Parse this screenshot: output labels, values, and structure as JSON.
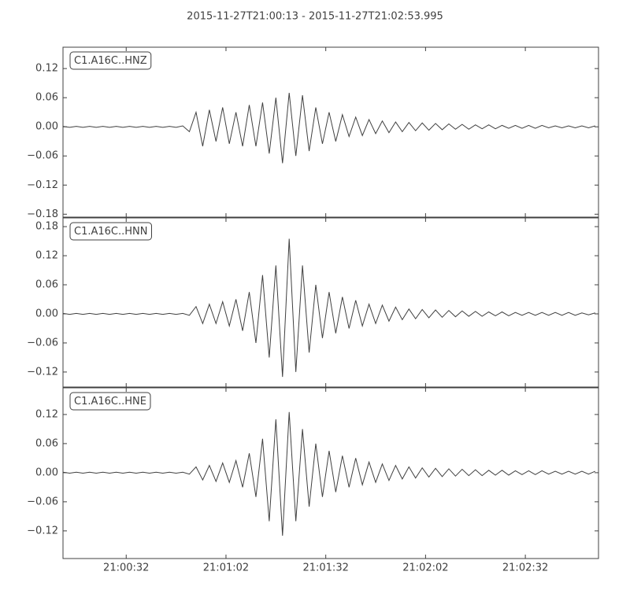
{
  "title": "2015-11-27T21:00:13  -  2015-11-27T21:02:53.995",
  "chart_data": [
    {
      "type": "line",
      "xlim": [
        13,
        173.995
      ],
      "ylim": [
        -0.186,
        0.164
      ],
      "yticks": [
        {
          "value": -0.18,
          "label": "−0.18"
        },
        {
          "value": -0.12,
          "label": "−0.12"
        },
        {
          "value": -0.06,
          "label": "−0.06"
        },
        {
          "value": 0,
          "label": "0.00"
        },
        {
          "value": 0.06,
          "label": "0.06"
        },
        {
          "value": 0.12,
          "label": "0.12"
        }
      ],
      "x": [
        13,
        15,
        17,
        19,
        21,
        23,
        25,
        27,
        29,
        31,
        33,
        35,
        37,
        39,
        41,
        43,
        45,
        47,
        49,
        51,
        53,
        55,
        57,
        59,
        61,
        63,
        65,
        67,
        69,
        71,
        73,
        75,
        77,
        79,
        81,
        83,
        85,
        87,
        89,
        91,
        93,
        95,
        97,
        99,
        101,
        103,
        105,
        107,
        109,
        111,
        113,
        115,
        117,
        119,
        121,
        123,
        125,
        127,
        129,
        131,
        133,
        135,
        137,
        139,
        141,
        143,
        145,
        147,
        149,
        151,
        153,
        155,
        157,
        159,
        161,
        163,
        165,
        167,
        169,
        171,
        173
      ],
      "series": [
        {
          "name": "C1.A16C..HNZ",
          "color": "#404040",
          "values": [
            0.001,
            -0.001,
            0.001,
            -0.001,
            0.001,
            -0.001,
            0.001,
            -0.001,
            0.001,
            -0.001,
            0.001,
            -0.001,
            0.001,
            -0.001,
            0.001,
            -0.001,
            0.001,
            -0.001,
            0.002,
            -0.01,
            0.03,
            -0.04,
            0.035,
            -0.03,
            0.04,
            -0.035,
            0.03,
            -0.04,
            0.045,
            -0.04,
            0.05,
            -0.055,
            0.06,
            -0.075,
            0.07,
            -0.06,
            0.065,
            -0.05,
            0.04,
            -0.035,
            0.03,
            -0.03,
            0.025,
            -0.02,
            0.02,
            -0.018,
            0.015,
            -0.014,
            0.012,
            -0.012,
            0.01,
            -0.01,
            0.009,
            -0.008,
            0.008,
            -0.007,
            0.007,
            -0.006,
            0.006,
            -0.005,
            0.005,
            -0.005,
            0.004,
            -0.004,
            0.004,
            -0.004,
            0.003,
            -0.003,
            0.003,
            -0.003,
            0.003,
            -0.003,
            0.003,
            -0.002,
            0.002,
            -0.002,
            0.002,
            -0.002,
            0.002,
            -0.002,
            0.002
          ]
        }
      ]
    },
    {
      "type": "line",
      "xlim": [
        13,
        173.995
      ],
      "ylim": [
        -0.151,
        0.198
      ],
      "yticks": [
        {
          "value": -0.12,
          "label": "−0.12"
        },
        {
          "value": -0.06,
          "label": "−0.06"
        },
        {
          "value": 0,
          "label": "0.00"
        },
        {
          "value": 0.06,
          "label": "0.06"
        },
        {
          "value": 0.12,
          "label": "0.12"
        },
        {
          "value": 0.18,
          "label": "0.18"
        }
      ],
      "x": [
        13,
        15,
        17,
        19,
        21,
        23,
        25,
        27,
        29,
        31,
        33,
        35,
        37,
        39,
        41,
        43,
        45,
        47,
        49,
        51,
        53,
        55,
        57,
        59,
        61,
        63,
        65,
        67,
        69,
        71,
        73,
        75,
        77,
        79,
        81,
        83,
        85,
        87,
        89,
        91,
        93,
        95,
        97,
        99,
        101,
        103,
        105,
        107,
        109,
        111,
        113,
        115,
        117,
        119,
        121,
        123,
        125,
        127,
        129,
        131,
        133,
        135,
        137,
        139,
        141,
        143,
        145,
        147,
        149,
        151,
        153,
        155,
        157,
        159,
        161,
        163,
        165,
        167,
        169,
        171,
        173
      ],
      "series": [
        {
          "name": "C1.A16C..HNN",
          "color": "#404040",
          "values": [
            0.001,
            -0.001,
            0.001,
            -0.001,
            0.001,
            -0.001,
            0.001,
            -0.001,
            0.001,
            -0.001,
            0.001,
            -0.001,
            0.001,
            -0.001,
            0.001,
            -0.001,
            0.001,
            -0.001,
            0.001,
            -0.003,
            0.015,
            -0.02,
            0.02,
            -0.02,
            0.025,
            -0.025,
            0.03,
            -0.035,
            0.045,
            -0.06,
            0.08,
            -0.09,
            0.1,
            -0.13,
            0.155,
            -0.12,
            0.1,
            -0.08,
            0.06,
            -0.05,
            0.045,
            -0.04,
            0.035,
            -0.03,
            0.028,
            -0.025,
            0.02,
            -0.02,
            0.018,
            -0.015,
            0.014,
            -0.012,
            0.01,
            -0.01,
            0.009,
            -0.008,
            0.008,
            -0.007,
            0.007,
            -0.006,
            0.006,
            -0.005,
            0.005,
            -0.005,
            0.004,
            -0.004,
            0.004,
            -0.004,
            0.003,
            -0.003,
            0.003,
            -0.003,
            0.003,
            -0.003,
            0.003,
            -0.003,
            0.003,
            -0.003,
            0.002,
            -0.002,
            0.002
          ]
        }
      ]
    },
    {
      "type": "line",
      "xlim": [
        13,
        173.995
      ],
      "ylim": [
        -0.177,
        0.175
      ],
      "xticks": [
        {
          "value": 32,
          "label": "21:00:32"
        },
        {
          "value": 62,
          "label": "21:01:02"
        },
        {
          "value": 92,
          "label": "21:01:32"
        },
        {
          "value": 122,
          "label": "21:02:02"
        },
        {
          "value": 152,
          "label": "21:02:32"
        }
      ],
      "yticks": [
        {
          "value": -0.12,
          "label": "−0.12"
        },
        {
          "value": -0.06,
          "label": "−0.06"
        },
        {
          "value": 0,
          "label": "0.00"
        },
        {
          "value": 0.06,
          "label": "0.06"
        },
        {
          "value": 0.12,
          "label": "0.12"
        }
      ],
      "x": [
        13,
        15,
        17,
        19,
        21,
        23,
        25,
        27,
        29,
        31,
        33,
        35,
        37,
        39,
        41,
        43,
        45,
        47,
        49,
        51,
        53,
        55,
        57,
        59,
        61,
        63,
        65,
        67,
        69,
        71,
        73,
        75,
        77,
        79,
        81,
        83,
        85,
        87,
        89,
        91,
        93,
        95,
        97,
        99,
        101,
        103,
        105,
        107,
        109,
        111,
        113,
        115,
        117,
        119,
        121,
        123,
        125,
        127,
        129,
        131,
        133,
        135,
        137,
        139,
        141,
        143,
        145,
        147,
        149,
        151,
        153,
        155,
        157,
        159,
        161,
        163,
        165,
        167,
        169,
        171,
        173
      ],
      "series": [
        {
          "name": "C1.A16C..HNE",
          "color": "#404040",
          "values": [
            0.001,
            -0.001,
            0.001,
            -0.001,
            0.001,
            -0.001,
            0.001,
            -0.001,
            0.001,
            -0.001,
            0.001,
            -0.001,
            0.001,
            -0.001,
            0.001,
            -0.001,
            0.001,
            -0.001,
            0.001,
            -0.003,
            0.012,
            -0.015,
            0.015,
            -0.018,
            0.02,
            -0.02,
            0.025,
            -0.03,
            0.04,
            -0.05,
            0.07,
            -0.1,
            0.11,
            -0.13,
            0.125,
            -0.1,
            0.09,
            -0.07,
            0.06,
            -0.05,
            0.045,
            -0.04,
            0.035,
            -0.03,
            0.03,
            -0.025,
            0.022,
            -0.02,
            0.018,
            -0.016,
            0.015,
            -0.013,
            0.012,
            -0.011,
            0.01,
            -0.009,
            0.009,
            -0.008,
            0.008,
            -0.007,
            0.007,
            -0.006,
            0.006,
            -0.006,
            0.005,
            -0.005,
            0.005,
            -0.005,
            0.004,
            -0.004,
            0.004,
            -0.004,
            0.004,
            -0.003,
            0.003,
            -0.003,
            0.003,
            -0.003,
            0.003,
            -0.003,
            0.003
          ]
        }
      ]
    }
  ]
}
